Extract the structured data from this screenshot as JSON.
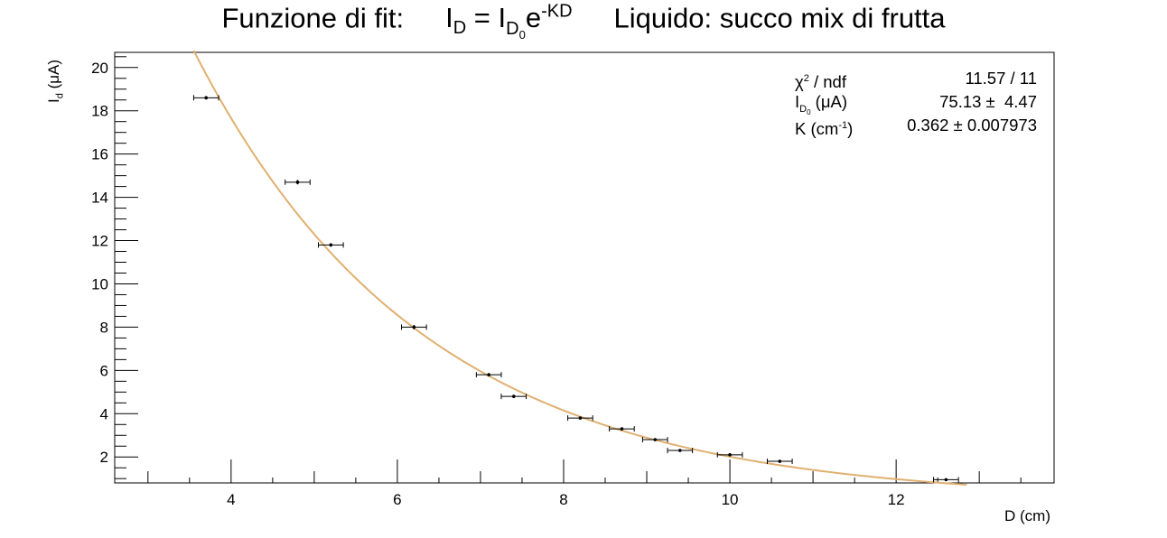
{
  "chart_data": {
    "type": "scatter",
    "title": {
      "prefix": "Funzione di fit:",
      "formula": {
        "lhs": "I",
        "lhs_sub": "D",
        "eq": " = ",
        "rhs": "I",
        "rhs_sub": "D",
        "rhs_subsub": "0",
        "base": "e",
        "exp": "-KD"
      },
      "suffix": "Liquido: succo mix di frutta"
    },
    "xlabel": "D (cm)",
    "ylabel": {
      "main": "I",
      "sub": "d",
      "unit": " (μA)"
    },
    "xlim": [
      2.6,
      13.9
    ],
    "ylim": [
      0.8,
      20.7
    ],
    "x_ticks": [
      4,
      6,
      8,
      10,
      12
    ],
    "y_ticks": [
      2,
      4,
      6,
      8,
      10,
      12,
      14,
      16,
      18,
      20
    ],
    "points": [
      {
        "x": 3.7,
        "y": 18.6,
        "xerr": 0.15,
        "yerr": 0.08
      },
      {
        "x": 4.8,
        "y": 14.7,
        "xerr": 0.15,
        "yerr": 0.1
      },
      {
        "x": 5.2,
        "y": 11.8,
        "xerr": 0.15,
        "yerr": 0.08
      },
      {
        "x": 6.2,
        "y": 8.0,
        "xerr": 0.15,
        "yerr": 0.1
      },
      {
        "x": 7.1,
        "y": 5.8,
        "xerr": 0.15,
        "yerr": 0.08
      },
      {
        "x": 7.4,
        "y": 4.8,
        "xerr": 0.15,
        "yerr": 0.08
      },
      {
        "x": 8.2,
        "y": 3.8,
        "xerr": 0.15,
        "yerr": 0.07
      },
      {
        "x": 8.7,
        "y": 3.3,
        "xerr": 0.15,
        "yerr": 0.07
      },
      {
        "x": 9.1,
        "y": 2.8,
        "xerr": 0.15,
        "yerr": 0.06
      },
      {
        "x": 9.4,
        "y": 2.3,
        "xerr": 0.15,
        "yerr": 0.06
      },
      {
        "x": 10.0,
        "y": 2.1,
        "xerr": 0.15,
        "yerr": 0.07
      },
      {
        "x": 10.6,
        "y": 1.8,
        "xerr": 0.15,
        "yerr": 0.07
      },
      {
        "x": 12.6,
        "y": 0.95,
        "xerr": 0.15,
        "yerr": 0.05
      }
    ],
    "fit": {
      "function": "exponential",
      "amplitude": 75.13,
      "k": 0.362,
      "x_range": [
        3.55,
        12.85
      ],
      "color": "#e0b070"
    },
    "stats": {
      "chi2_label": "χ",
      "chi2_sup": "2",
      "chi2_rest": " / ndf",
      "chi2_value": "11.57 / 11",
      "amp_label_main": "I",
      "amp_label_sub": "D",
      "amp_label_subsub": "0",
      "amp_label_unit": " (μA)",
      "amp_value": "75.13 ±  4.47",
      "k_label_main": "K (cm",
      "k_label_sup": "-1",
      "k_label_close": ")",
      "k_value": "0.362 ± 0.007973"
    },
    "grid": false,
    "legend": "top-right"
  }
}
